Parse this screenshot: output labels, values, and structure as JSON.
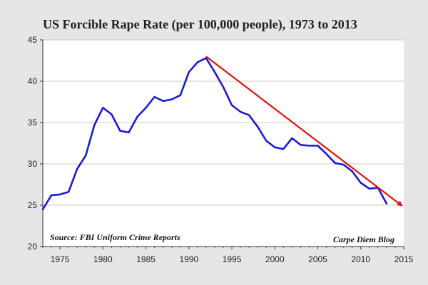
{
  "chart_data": {
    "type": "line",
    "title": "US Forcible Rape Rate (per 100,000 people), 1973 to 2013",
    "xlabel": "",
    "ylabel": "",
    "xlim": [
      1973,
      2015
    ],
    "ylim": [
      20,
      45
    ],
    "xticks": [
      1975,
      1980,
      1985,
      1990,
      1995,
      2000,
      2005,
      2010,
      2015
    ],
    "yticks": [
      20,
      25,
      30,
      35,
      40,
      45
    ],
    "grid": true,
    "series": [
      {
        "name": "Forcible rape rate",
        "color": "#1a1ad6",
        "x": [
          1973,
          1974,
          1975,
          1976,
          1977,
          1978,
          1979,
          1980,
          1981,
          1982,
          1983,
          1984,
          1985,
          1986,
          1987,
          1988,
          1989,
          1990,
          1991,
          1992,
          1993,
          1994,
          1995,
          1996,
          1997,
          1998,
          1999,
          2000,
          2001,
          2002,
          2003,
          2004,
          2005,
          2006,
          2007,
          2008,
          2009,
          2010,
          2011,
          2012,
          2013
        ],
        "values": [
          24.5,
          26.2,
          26.3,
          26.6,
          29.4,
          31.0,
          34.7,
          36.8,
          36.0,
          34.0,
          33.8,
          35.7,
          36.8,
          38.1,
          37.6,
          37.8,
          38.3,
          41.1,
          42.3,
          42.8,
          41.1,
          39.3,
          37.1,
          36.3,
          35.9,
          34.5,
          32.8,
          32.0,
          31.8,
          33.1,
          32.3,
          32.2,
          32.2,
          31.2,
          30.1,
          29.9,
          29.1,
          27.7,
          27.0,
          27.1,
          25.2
        ]
      }
    ],
    "trend_arrow": {
      "from": [
        1992,
        43.0
      ],
      "to": [
        2015,
        24.8
      ],
      "color": "#e01010"
    },
    "annotations": {
      "source": "Source: FBI Uniform Crime Reports",
      "credit": "Carpe Diem Blog"
    }
  }
}
